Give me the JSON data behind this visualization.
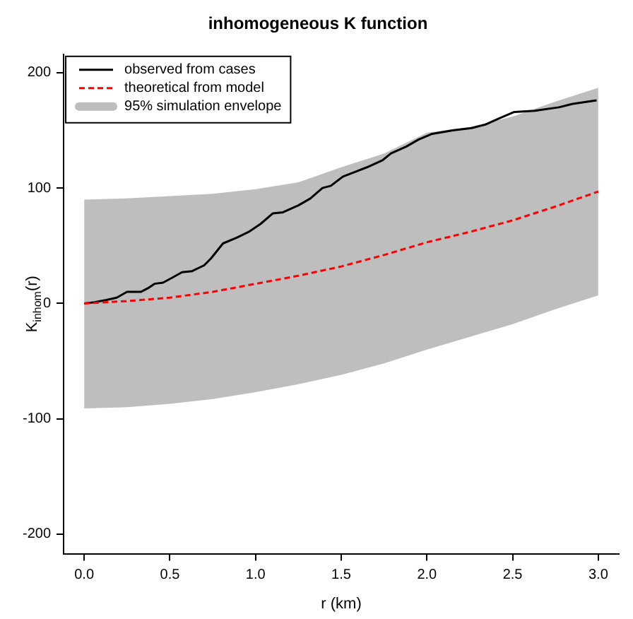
{
  "chart_data": {
    "type": "line",
    "title": "inhomogeneous K function",
    "xlabel": "r (km)",
    "ylabel": "K$_{inhom}$(r)",
    "xlim": [
      -0.12,
      3.12
    ],
    "xticks": [
      {
        "value": 0,
        "label": "0.0"
      },
      {
        "value": 0.5,
        "label": "0.5"
      },
      {
        "value": 1,
        "label": "1.0"
      },
      {
        "value": 1.5,
        "label": "1.5"
      },
      {
        "value": 2,
        "label": "2.0"
      },
      {
        "value": 2.5,
        "label": "2.5"
      },
      {
        "value": 3,
        "label": "3.0"
      }
    ],
    "ylim": [
      -217,
      216
    ],
    "yticks": [
      -200,
      -100,
      0,
      100,
      200
    ],
    "grid": false,
    "legend": "top left",
    "marker": "none",
    "series": [
      {
        "name": "observed from cases",
        "color": "#000000",
        "line_style": "solid",
        "x": [
          0,
          0.06,
          0.13,
          0.19,
          0.25,
          0.33,
          0.37,
          0.41,
          0.46,
          0.51,
          0.57,
          0.63,
          0.7,
          0.74,
          0.81,
          0.89,
          0.96,
          1.03,
          1.1,
          1.16,
          1.25,
          1.32,
          1.39,
          1.44,
          1.51,
          1.58,
          1.65,
          1.74,
          1.79,
          1.88,
          1.95,
          2.03,
          2.15,
          2.26,
          2.34,
          2.43,
          2.51,
          2.63,
          2.77,
          2.85,
          2.99
        ],
        "values": [
          0,
          1,
          3,
          5,
          10,
          10,
          13,
          17,
          18,
          22,
          27,
          28,
          33,
          39,
          52,
          57,
          62,
          69,
          78,
          79,
          85,
          91,
          100,
          102,
          110,
          114,
          118,
          124,
          130,
          136,
          142,
          147,
          150,
          152,
          155,
          161,
          166,
          167,
          170,
          173,
          176
        ]
      },
      {
        "name": "theoretical from model",
        "color": "#ff0000",
        "line_style": "dashed",
        "x": [
          0,
          0.25,
          0.5,
          0.75,
          1,
          1.25,
          1.5,
          1.75,
          2,
          2.25,
          2.5,
          2.75,
          3
        ],
        "values": [
          0,
          2,
          5,
          10,
          17,
          24,
          32,
          42,
          53,
          62,
          72,
          84,
          97
        ]
      },
      {
        "name": "95% simulation envelope",
        "type": "area",
        "color": "#bebebe",
        "x": [
          0,
          0.25,
          0.5,
          0.75,
          1,
          1.25,
          1.5,
          1.75,
          2,
          2.25,
          2.5,
          2.75,
          3
        ],
        "values": [
          null,
          null,
          null,
          null,
          null,
          null,
          null,
          null,
          null,
          null,
          null,
          null,
          null
        ],
        "lower": [
          -91,
          -90,
          -87,
          -83,
          -77,
          -70,
          -62,
          -52,
          -40,
          -29,
          -18,
          -5,
          7
        ],
        "upper": [
          90,
          91,
          93,
          95,
          99,
          105,
          118,
          130,
          148,
          153,
          162,
          175,
          187
        ]
      }
    ]
  }
}
